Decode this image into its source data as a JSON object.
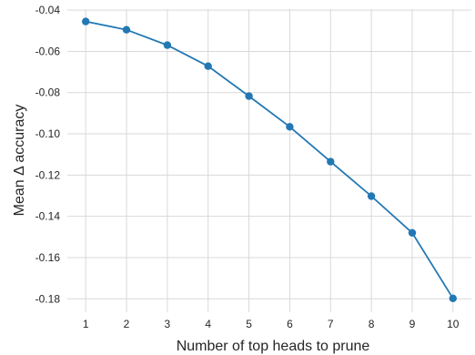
{
  "chart_data": {
    "type": "line",
    "title": "",
    "xlabel": "Number of top heads to prune",
    "ylabel": "Mean Δ accuracy",
    "x": [
      1,
      2,
      3,
      4,
      5,
      6,
      7,
      8,
      9,
      10
    ],
    "series": [
      {
        "values": [
          -0.0455,
          -0.0495,
          -0.057,
          -0.0672,
          -0.0817,
          -0.0966,
          -0.1135,
          -0.1302,
          -0.148,
          -0.1798
        ],
        "color": "#2378b4"
      }
    ],
    "x_ticks": [
      "1",
      "2",
      "3",
      "4",
      "5",
      "6",
      "7",
      "8",
      "9",
      "10"
    ],
    "y_ticks": [
      "-0.04",
      "-0.06",
      "-0.08",
      "-0.10",
      "-0.12",
      "-0.14",
      "-0.16",
      "-0.18"
    ],
    "y_tick_values": [
      -0.04,
      -0.06,
      -0.08,
      -0.1,
      -0.12,
      -0.14,
      -0.16,
      -0.18
    ],
    "xlim": [
      0.55,
      10.45
    ],
    "ylim": [
      -0.1865,
      -0.0395
    ],
    "grid": true,
    "marker": "circle"
  }
}
